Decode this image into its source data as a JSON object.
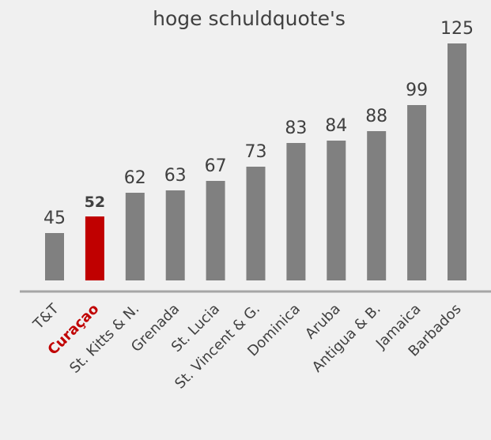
{
  "chart_data": {
    "type": "bar",
    "title": "hoge schuldquote's",
    "categories": [
      "T&T",
      "Curaçao",
      "St. Kitts & N.",
      "Grenada",
      "St. Lucia",
      "St. Vincent & G.",
      "Dominica",
      "Aruba",
      "Antigua & B.",
      "Jamaica",
      "Barbados"
    ],
    "values": [
      45,
      52,
      62,
      63,
      67,
      73,
      83,
      84,
      88,
      99,
      125
    ],
    "colors": [
      "#808080",
      "#c00000",
      "#808080",
      "#808080",
      "#808080",
      "#808080",
      "#808080",
      "#808080",
      "#808080",
      "#808080",
      "#808080"
    ],
    "highlight": "Curaçao",
    "ylim": [
      25,
      125
    ]
  }
}
